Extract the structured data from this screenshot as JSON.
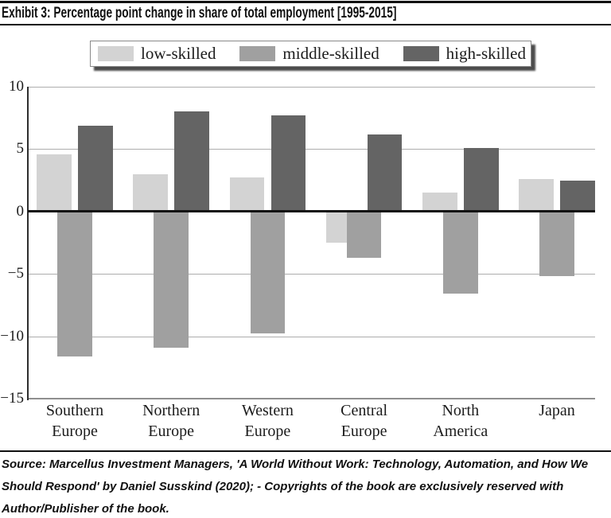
{
  "header": {
    "title": "Exhibit 3: Percentage point change in share of total employment [1995-2015]"
  },
  "legend": {
    "items": [
      {
        "label": "low-skilled",
        "color": "#d3d3d3"
      },
      {
        "label": "middle-skilled",
        "color": "#a0a0a0"
      },
      {
        "label": "high-skilled",
        "color": "#646464"
      }
    ]
  },
  "chart_data": {
    "type": "bar",
    "title": "Percentage point change in share of total employment [1995-2015]",
    "categories": [
      "Southern Europe",
      "Northern Europe",
      "Western Europe",
      "Central Europe",
      "North America",
      "Japan"
    ],
    "series": [
      {
        "name": "low-skilled",
        "color": "#d3d3d3",
        "values": [
          4.6,
          3.0,
          2.7,
          -2.5,
          1.5,
          2.6
        ]
      },
      {
        "name": "middle-skilled",
        "color": "#a0a0a0",
        "values": [
          -11.6,
          -10.9,
          -9.8,
          -3.7,
          -6.6,
          -5.2
        ]
      },
      {
        "name": "high-skilled",
        "color": "#646464",
        "values": [
          6.9,
          8.0,
          7.7,
          6.2,
          5.1,
          2.5
        ]
      }
    ],
    "xlabel": "",
    "ylabel": "",
    "ylim": [
      -15,
      10
    ],
    "yticks": [
      10,
      5,
      0,
      -5,
      -10,
      -15
    ],
    "grid": true,
    "legend_position": "top"
  },
  "source": {
    "lines": [
      "Source: Marcellus Investment Managers, 'A World Without Work: Technology, Automation, and How We",
      "Should Respond' by Daniel Susskind (2020); - Copyrights of the book are exclusively reserved with",
      "Author/Publisher of the book."
    ]
  }
}
